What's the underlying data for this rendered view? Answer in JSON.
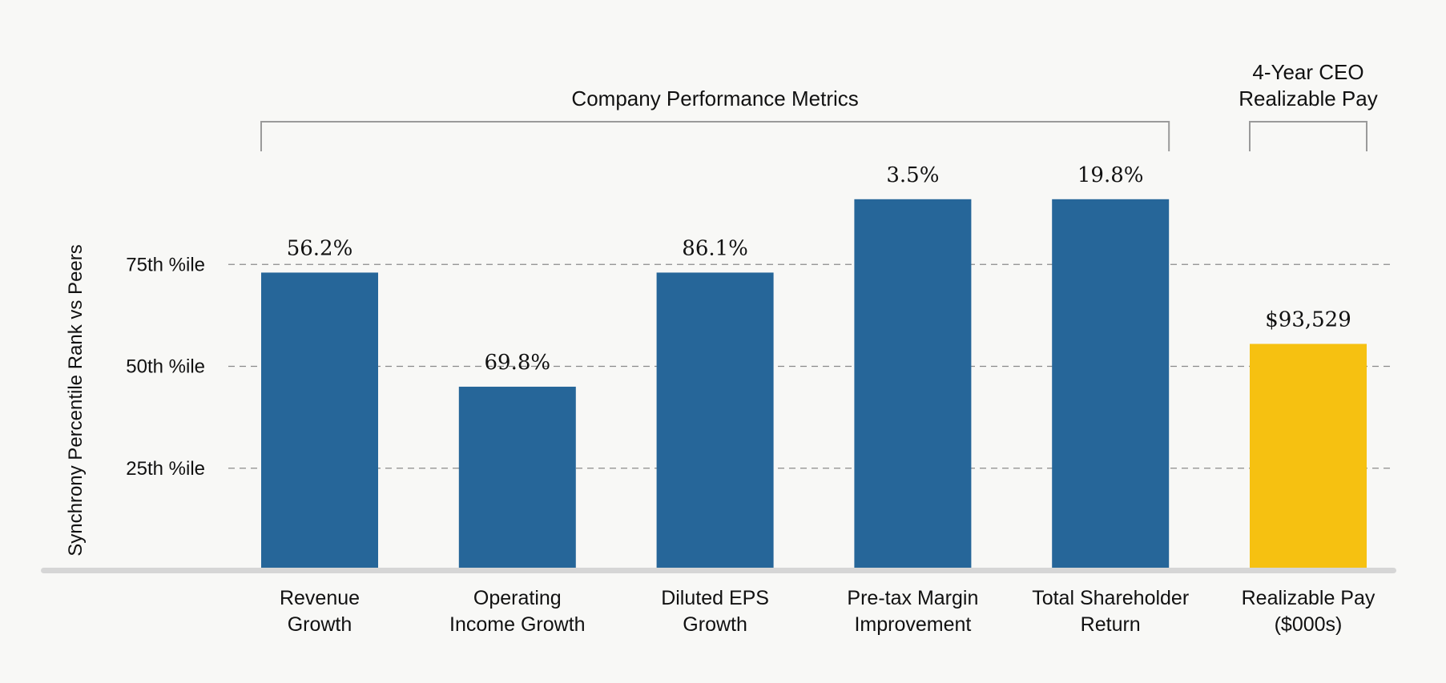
{
  "chart_data": {
    "type": "bar",
    "ylabel": "Synchrony Percentile Rank vs Peers",
    "yticks": [
      {
        "value": 25,
        "label": "25th %ile"
      },
      {
        "value": 50,
        "label": "50th %ile"
      },
      {
        "value": 75,
        "label": "75th %ile"
      }
    ],
    "ylim": [
      0,
      100
    ],
    "grid": "dashed",
    "categories": [
      [
        "Revenue",
        "Growth"
      ],
      [
        "Operating",
        "Income Growth"
      ],
      [
        "Diluted EPS",
        "Growth"
      ],
      [
        "Pre-tax Margin",
        "Improvement"
      ],
      [
        "Total Shareholder",
        "Return"
      ],
      [
        "Realizable Pay",
        "($000s)"
      ]
    ],
    "values": [
      73,
      45,
      73,
      91,
      91,
      55.5
    ],
    "data_labels": [
      "56.2%",
      "69.8%",
      "86.1%",
      "3.5%",
      "19.8%",
      "$93,529"
    ],
    "groups": [
      {
        "title": [
          "Company Performance Metrics"
        ],
        "from": 0,
        "to": 4
      },
      {
        "title": [
          "4-Year CEO",
          "Realizable Pay"
        ],
        "from": 5,
        "to": 5
      }
    ],
    "colors": {
      "bar": "#266699",
      "highlight": "#f6c111",
      "highlight_index": 5,
      "grid": "#8a8a8a",
      "baseline": "#d6d6d6",
      "bracket": "#9a9a9a"
    }
  }
}
